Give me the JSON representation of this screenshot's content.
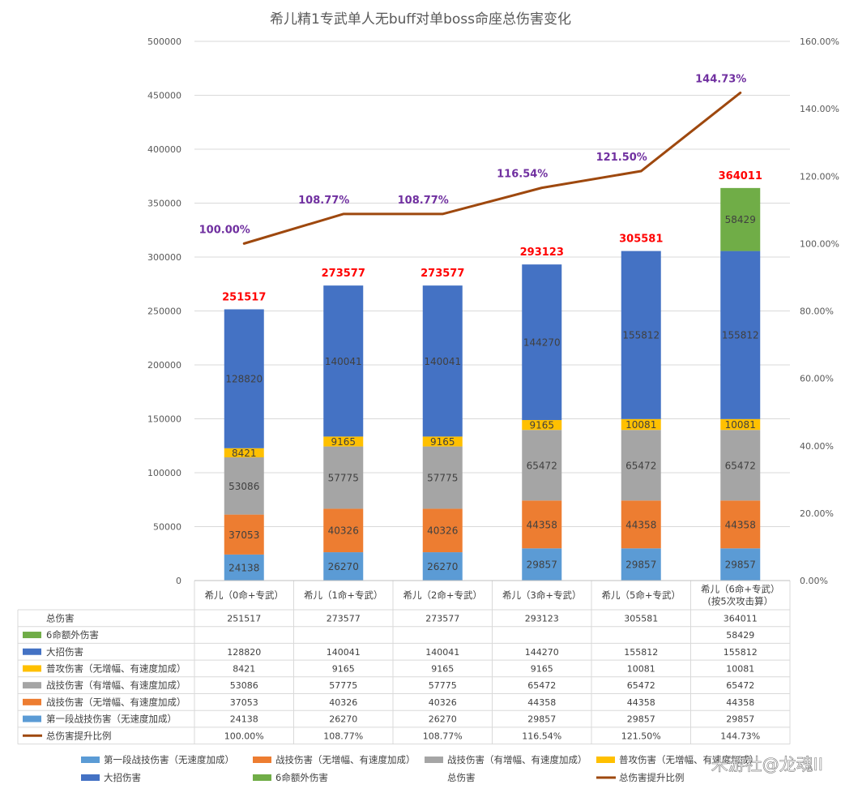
{
  "chart_data": {
    "type": "bar",
    "title": "希儿精1专武单人无buff对单boss命座总伤害变化",
    "categories": [
      [
        "希儿（0命+专武）"
      ],
      [
        "希儿（1命+专武）"
      ],
      [
        "希儿（2命+专武）"
      ],
      [
        "希儿（3命+专武）"
      ],
      [
        "希儿（5命+专武）"
      ],
      [
        "希儿（6命+专武）",
        "(按5次攻击算）"
      ]
    ],
    "ylim": [
      0,
      500000
    ],
    "y_ticks": [
      "0",
      "50000",
      "100000",
      "150000",
      "200000",
      "250000",
      "300000",
      "350000",
      "400000",
      "450000",
      "500000"
    ],
    "y2lim": [
      0,
      1.6
    ],
    "y2_ticks": [
      "0.00%",
      "20.00%",
      "40.00%",
      "60.00%",
      "80.00%",
      "100.00%",
      "120.00%",
      "140.00%",
      "160.00%"
    ],
    "stack_series": [
      {
        "name": "第一段战技伤害（无速度加成）",
        "color": "#5b9bd5",
        "values": [
          24138,
          26270,
          26270,
          29857,
          29857,
          29857
        ],
        "labels": [
          "24138",
          "26270",
          "26270",
          "29857",
          "29857",
          "29857"
        ]
      },
      {
        "name": "战技伤害（无增幅、有速度加成）",
        "color": "#ed7d31",
        "values": [
          37053,
          40326,
          40326,
          44358,
          44358,
          44358
        ],
        "labels": [
          "37053",
          "40326",
          "40326",
          "44358",
          "44358",
          "44358"
        ]
      },
      {
        "name": "战技伤害（有增幅、有速度加成）",
        "color": "#a5a5a5",
        "values": [
          53086,
          57775,
          57775,
          65472,
          65472,
          65472
        ],
        "labels": [
          "53086",
          "57775",
          "57775",
          "65472",
          "65472",
          "65472"
        ]
      },
      {
        "name": "普攻伤害（无增幅、有速度加成）",
        "color": "#ffc000",
        "values": [
          8421,
          9165,
          9165,
          9165,
          10081,
          10081
        ],
        "labels": [
          "8421",
          "9165",
          "9165",
          "9165",
          "10081",
          "10081"
        ]
      },
      {
        "name": "大招伤害",
        "color": "#4472c4",
        "values": [
          128820,
          140041,
          140041,
          144270,
          155812,
          155812
        ],
        "labels": [
          "128820",
          "140041",
          "140041",
          "144270",
          "155812",
          "155812"
        ]
      },
      {
        "name": "6命额外伤害",
        "color": "#70ad47",
        "values": [
          0,
          0,
          0,
          0,
          0,
          58429
        ],
        "labels": [
          "",
          "",
          "",
          "",
          "",
          "58429"
        ]
      }
    ],
    "total_series": {
      "name": "总伤害",
      "values": [
        251517,
        273577,
        273577,
        293123,
        305581,
        364011
      ],
      "labels": [
        "251517",
        "273577",
        "273577",
        "293123",
        "305581",
        "364011"
      ],
      "label_color": "#ff0000"
    },
    "ratio_series": {
      "name": "总伤害提升比例",
      "color": "#9e480e",
      "values": [
        1.0,
        1.0877,
        1.0877,
        1.1654,
        1.215,
        1.4473
      ],
      "labels": [
        "100.00%",
        "108.77%",
        "108.77%",
        "116.54%",
        "121.50%",
        "144.73%"
      ],
      "label_color": "#7030a0"
    },
    "table_rows": [
      {
        "key": "total",
        "name": "总伤害",
        "legend": "none",
        "cells": [
          "251517",
          "273577",
          "273577",
          "293123",
          "305581",
          "364011"
        ]
      },
      {
        "key": "s6",
        "name": "6命额外伤害",
        "legend": "box",
        "color": "#70ad47",
        "cells": [
          "",
          "",
          "",
          "",
          "",
          "58429"
        ]
      },
      {
        "key": "ult",
        "name": "大招伤害",
        "legend": "box",
        "color": "#4472c4",
        "cells": [
          "128820",
          "140041",
          "140041",
          "144270",
          "155812",
          "155812"
        ]
      },
      {
        "key": "basic",
        "name": "普攻伤害（无增幅、有速度加成）",
        "legend": "box",
        "color": "#ffc000",
        "cells": [
          "8421",
          "9165",
          "9165",
          "9165",
          "10081",
          "10081"
        ]
      },
      {
        "key": "skill_amp",
        "name": "战技伤害（有增幅、有速度加成）",
        "legend": "box",
        "color": "#a5a5a5",
        "cells": [
          "53086",
          "57775",
          "57775",
          "65472",
          "65472",
          "65472"
        ]
      },
      {
        "key": "skill",
        "name": "战技伤害（无增幅、有速度加成）",
        "legend": "box",
        "color": "#ed7d31",
        "cells": [
          "37053",
          "40326",
          "40326",
          "44358",
          "44358",
          "44358"
        ]
      },
      {
        "key": "first",
        "name": "第一段战技伤害（无速度加成）",
        "legend": "box",
        "color": "#5b9bd5",
        "cells": [
          "24138",
          "26270",
          "26270",
          "29857",
          "29857",
          "29857"
        ]
      },
      {
        "key": "ratio",
        "name": "总伤害提升比例",
        "legend": "line",
        "color": "#9e480e",
        "cells": [
          "100.00%",
          "108.77%",
          "108.77%",
          "116.54%",
          "121.50%",
          "144.73%"
        ]
      }
    ],
    "legend": {
      "placement": "bottom",
      "row1": [
        {
          "name": "第一段战技伤害（无速度加成）",
          "kind": "box",
          "color": "#5b9bd5"
        },
        {
          "name": "战技伤害（无增幅、有速度加成）",
          "kind": "box",
          "color": "#ed7d31"
        },
        {
          "name": "战技伤害（有增幅、有速度加成）",
          "kind": "box",
          "color": "#a5a5a5"
        },
        {
          "name": "普攻伤害（无增幅、有速度加成）",
          "kind": "box",
          "color": "#ffc000"
        }
      ],
      "row2": [
        {
          "name": "大招伤害",
          "kind": "box",
          "color": "#4472c4"
        },
        {
          "name": "6命额外伤害",
          "kind": "box",
          "color": "#70ad47"
        },
        {
          "name": "总伤害",
          "kind": "none",
          "color": ""
        },
        {
          "name": "总伤害提升比例",
          "kind": "line",
          "color": "#9e480e"
        }
      ]
    },
    "grid": true,
    "watermark": "米游社@龙魂II"
  }
}
